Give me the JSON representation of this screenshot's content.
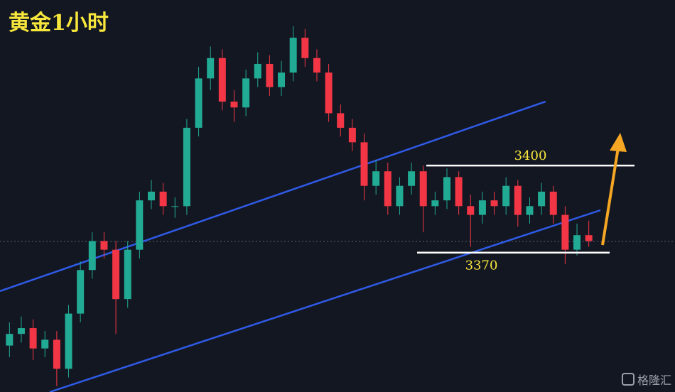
{
  "chart_data": {
    "type": "candlestick",
    "title": "黄金1小时",
    "watermark": "格隆汇",
    "up_color": "#22ab94",
    "down_color": "#f23645",
    "open": [
      3338,
      3342,
      3344,
      3337,
      3340,
      3330,
      3349,
      3364,
      3374,
      3371,
      3354,
      3371,
      3388,
      3391,
      3386,
      3386,
      3413,
      3430,
      3437,
      3422,
      3420,
      3430,
      3435,
      3427,
      3432,
      3444,
      3437,
      3432,
      3418,
      3413,
      3408,
      3393,
      3398,
      3386,
      3393,
      3398,
      3386,
      3388,
      3396,
      3386,
      3383,
      3388,
      3386,
      3393,
      3383,
      3386,
      3391,
      3383,
      3371,
      3376
    ],
    "high": [
      3346,
      3348,
      3347,
      3343,
      3343,
      3352,
      3367,
      3377,
      3377,
      3374,
      3374,
      3391,
      3395,
      3394,
      3389,
      3416,
      3434,
      3441,
      3440,
      3426,
      3433,
      3439,
      3438,
      3436,
      3448,
      3447,
      3440,
      3435,
      3421,
      3416,
      3411,
      3402,
      3401,
      3396,
      3401,
      3400,
      3391,
      3399,
      3398,
      3390,
      3391,
      3391,
      3396,
      3395,
      3389,
      3394,
      3393,
      3386,
      3380,
      3381
    ],
    "low": [
      3334,
      3339,
      3333,
      3334,
      3324,
      3327,
      3346,
      3361,
      3368,
      3342,
      3351,
      3368,
      3385,
      3383,
      3382,
      3383,
      3410,
      3426,
      3419,
      3415,
      3417,
      3427,
      3424,
      3424,
      3429,
      3434,
      3429,
      3415,
      3410,
      3405,
      3388,
      3390,
      3383,
      3383,
      3390,
      3377,
      3383,
      3385,
      3383,
      3372,
      3380,
      3383,
      3383,
      3379,
      3380,
      3383,
      3380,
      3366,
      3369,
      3372
    ],
    "close": [
      3342,
      3344,
      3337,
      3340,
      3330,
      3349,
      3364,
      3374,
      3371,
      3354,
      3371,
      3388,
      3391,
      3386,
      3386,
      3413,
      3430,
      3437,
      3422,
      3420,
      3430,
      3435,
      3427,
      3432,
      3444,
      3437,
      3432,
      3418,
      3413,
      3408,
      3393,
      3398,
      3386,
      3393,
      3398,
      3386,
      3388,
      3396,
      3386,
      3383,
      3388,
      3386,
      3393,
      3383,
      3386,
      3391,
      3383,
      3371,
      3376,
      3374
    ],
    "levels": [
      3400,
      3370
    ],
    "ylim": [
      3322,
      3457
    ]
  }
}
